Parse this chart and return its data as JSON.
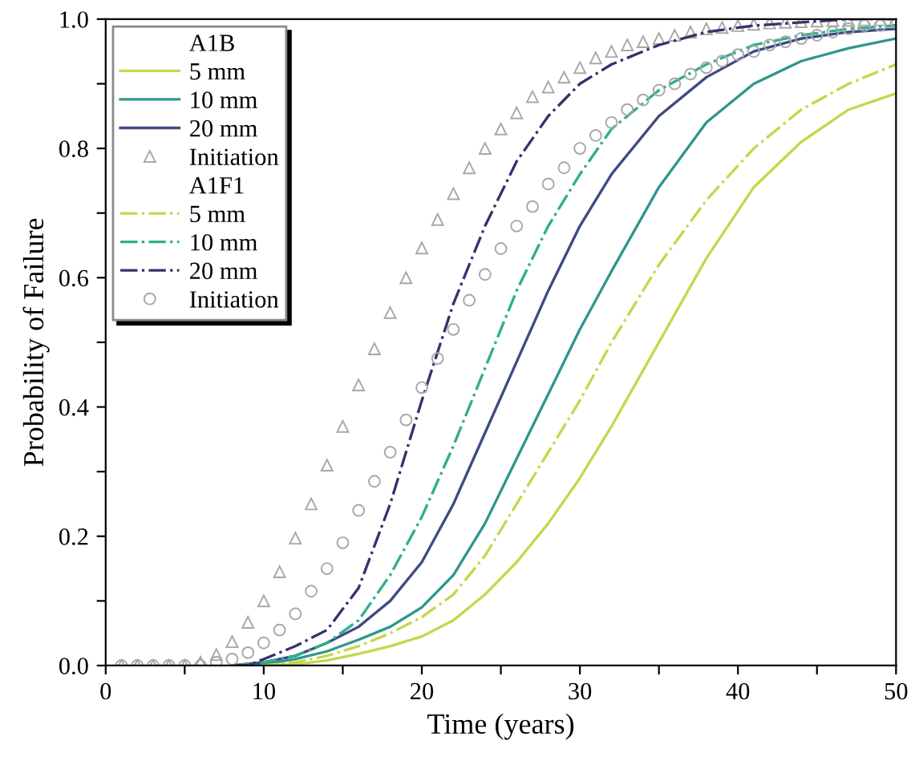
{
  "chart_data": {
    "type": "line",
    "xlabel": "Time (years)",
    "ylabel": "Probability of Failure",
    "xlim": [
      0,
      50
    ],
    "ylim": [
      0,
      1.0
    ],
    "xticks": [
      0,
      {
        "value": 5,
        "label": null
      },
      10,
      {
        "value": 15,
        "label": null
      },
      20,
      {
        "value": 25,
        "label": null
      },
      30,
      {
        "value": 35,
        "label": null
      },
      40,
      {
        "value": 45,
        "label": null
      },
      50
    ],
    "yticks": [
      {
        "value": 0,
        "label": "0.0"
      },
      {
        "value": 0.1,
        "label": null
      },
      0.2,
      {
        "value": 0.3,
        "label": null
      },
      0.4,
      {
        "value": 0.5,
        "label": null
      },
      0.6,
      {
        "value": 0.7,
        "label": null
      },
      0.8,
      {
        "value": 0.9,
        "label": null
      },
      {
        "value": 1.0,
        "label": "1.0"
      }
    ],
    "grid": false,
    "legend": "top left",
    "annotations": [
      "A1B",
      "A1F1"
    ],
    "series": [
      {
        "name": "5 mm",
        "color": "#c3d84b",
        "line_style": "solid",
        "marker": "none",
        "x": [
          8,
          10,
          12,
          14,
          16,
          18,
          20,
          22,
          24,
          26,
          28,
          30,
          32,
          35,
          38,
          41,
          44,
          47,
          50
        ],
        "values": [
          0,
          0,
          0.002,
          0.008,
          0.018,
          0.03,
          0.045,
          0.07,
          0.11,
          0.16,
          0.22,
          0.29,
          0.37,
          0.5,
          0.63,
          0.74,
          0.81,
          0.86,
          0.885
        ]
      },
      {
        "name": "10 mm",
        "color": "#2f968c",
        "line_style": "solid",
        "marker": "none",
        "x": [
          8,
          10,
          12,
          14,
          16,
          18,
          20,
          22,
          24,
          26,
          28,
          30,
          32,
          35,
          38,
          41,
          44,
          47,
          50
        ],
        "values": [
          0,
          0.002,
          0.01,
          0.022,
          0.04,
          0.06,
          0.09,
          0.14,
          0.22,
          0.32,
          0.42,
          0.52,
          0.61,
          0.74,
          0.84,
          0.9,
          0.935,
          0.955,
          0.97
        ]
      },
      {
        "name": "20 mm",
        "color": "#3d4a85",
        "line_style": "solid",
        "marker": "none",
        "x": [
          8,
          10,
          12,
          14,
          16,
          18,
          20,
          22,
          24,
          26,
          28,
          30,
          32,
          35,
          38,
          41,
          44,
          47,
          50
        ],
        "values": [
          0,
          0.005,
          0.015,
          0.035,
          0.06,
          0.1,
          0.16,
          0.25,
          0.36,
          0.47,
          0.58,
          0.68,
          0.76,
          0.85,
          0.91,
          0.95,
          0.97,
          0.98,
          0.985
        ]
      },
      {
        "name": "Initiation",
        "type": "scatter",
        "color": "#a8a8a8",
        "marker": "triangle",
        "x": [
          1,
          2,
          3,
          4,
          5,
          6,
          7,
          8,
          9,
          10,
          11,
          12,
          13,
          14,
          15,
          16,
          17,
          18,
          19,
          20,
          21,
          22,
          23,
          24,
          25,
          26,
          27,
          28,
          29,
          30,
          31,
          32,
          33,
          34,
          35,
          36,
          37,
          38,
          39,
          40,
          41,
          42,
          43,
          44,
          45,
          46,
          47,
          48,
          49,
          50
        ],
        "values": [
          0,
          0,
          0,
          0,
          0,
          0.005,
          0.017,
          0.037,
          0.067,
          0.1,
          0.145,
          0.197,
          0.25,
          0.31,
          0.37,
          0.434,
          0.49,
          0.546,
          0.6,
          0.646,
          0.69,
          0.73,
          0.77,
          0.8,
          0.83,
          0.855,
          0.88,
          0.895,
          0.91,
          0.925,
          0.94,
          0.95,
          0.96,
          0.965,
          0.97,
          0.975,
          0.98,
          0.985,
          0.987,
          0.99,
          0.992,
          0.994,
          0.995,
          0.996,
          0.997,
          0.998,
          0.998,
          0.999,
          0.999,
          1.0
        ]
      },
      {
        "name": "5 mm",
        "color": "#c3d84b",
        "line_style": "dashdot",
        "marker": "none",
        "x": [
          8,
          10,
          12,
          14,
          16,
          18,
          20,
          22,
          24,
          26,
          28,
          30,
          32,
          35,
          38,
          41,
          44,
          47,
          50
        ],
        "values": [
          0,
          0,
          0.005,
          0.015,
          0.03,
          0.05,
          0.075,
          0.11,
          0.17,
          0.25,
          0.33,
          0.41,
          0.5,
          0.62,
          0.72,
          0.8,
          0.86,
          0.9,
          0.93
        ]
      },
      {
        "name": "10 mm",
        "color": "#2fae8c",
        "line_style": "dashdot",
        "marker": "none",
        "x": [
          8,
          10,
          12,
          14,
          16,
          18,
          20,
          22,
          24,
          26,
          28,
          30,
          32,
          35,
          38,
          41,
          44,
          47,
          50
        ],
        "values": [
          0,
          0.005,
          0.015,
          0.035,
          0.07,
          0.14,
          0.23,
          0.34,
          0.46,
          0.58,
          0.68,
          0.76,
          0.83,
          0.89,
          0.93,
          0.96,
          0.975,
          0.985,
          0.99
        ]
      },
      {
        "name": "20 mm",
        "color": "#3b2f6e",
        "line_style": "dashdot",
        "marker": "none",
        "x": [
          8,
          9,
          10,
          12,
          14,
          16,
          18,
          20,
          22,
          24,
          26,
          28,
          30,
          32,
          35,
          38,
          41,
          44,
          47,
          50
        ],
        "values": [
          0,
          0,
          0.01,
          0.03,
          0.055,
          0.12,
          0.25,
          0.41,
          0.56,
          0.68,
          0.78,
          0.85,
          0.9,
          0.93,
          0.96,
          0.98,
          0.99,
          0.995,
          1.0,
          1.0
        ]
      },
      {
        "name": "Initiation",
        "type": "scatter",
        "color": "#a8a8a8",
        "marker": "circle",
        "x": [
          1,
          2,
          3,
          4,
          5,
          6,
          7,
          8,
          9,
          10,
          11,
          12,
          13,
          14,
          15,
          16,
          17,
          18,
          19,
          20,
          21,
          22,
          23,
          24,
          25,
          26,
          27,
          28,
          29,
          30,
          31,
          32,
          33,
          34,
          35,
          36,
          37,
          38,
          39,
          40,
          41,
          42,
          43,
          44,
          45,
          46,
          47,
          48,
          49,
          50
        ],
        "values": [
          0,
          0,
          0,
          0,
          0,
          0,
          0.005,
          0.01,
          0.02,
          0.035,
          0.055,
          0.08,
          0.115,
          0.15,
          0.19,
          0.24,
          0.285,
          0.33,
          0.38,
          0.43,
          0.475,
          0.52,
          0.565,
          0.605,
          0.645,
          0.68,
          0.71,
          0.745,
          0.77,
          0.8,
          0.82,
          0.84,
          0.86,
          0.875,
          0.89,
          0.9,
          0.915,
          0.925,
          0.935,
          0.945,
          0.95,
          0.96,
          0.965,
          0.97,
          0.975,
          0.98,
          0.985,
          0.99,
          0.99,
          0.995
        ]
      }
    ]
  }
}
